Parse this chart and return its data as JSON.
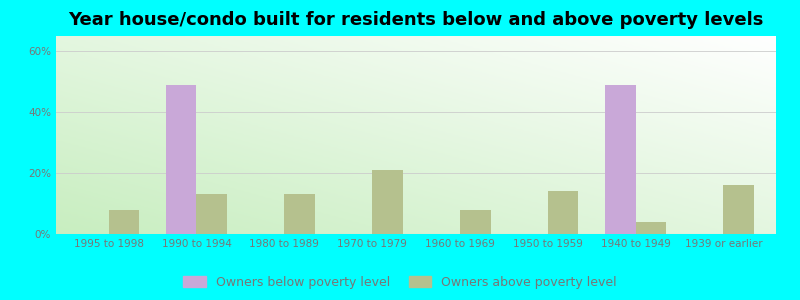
{
  "title": "Year house/condo built for residents below and above poverty levels",
  "categories": [
    "1995 to 1998",
    "1990 to 1994",
    "1980 to 1989",
    "1970 to 1979",
    "1960 to 1969",
    "1950 to 1959",
    "1940 to 1949",
    "1939 or earlier"
  ],
  "below_poverty": [
    0,
    49,
    0,
    0,
    0,
    0,
    49,
    0
  ],
  "above_poverty": [
    8,
    13,
    13,
    21,
    8,
    14,
    4,
    16
  ],
  "below_color": "#C9A8D8",
  "above_color": "#B5C18E",
  "background_grad_left": "#C8EEC0",
  "background_grad_right": "#EAFAEA",
  "outer_background": "#00FFFF",
  "ylim": [
    0,
    65
  ],
  "yticks": [
    0,
    20,
    40,
    60
  ],
  "ytick_labels": [
    "0%",
    "20%",
    "40%",
    "60%"
  ],
  "bar_width": 0.35,
  "legend_below_label": "Owners below poverty level",
  "legend_above_label": "Owners above poverty level",
  "title_fontsize": 13,
  "tick_fontsize": 7.5,
  "legend_fontsize": 9,
  "tick_color": "#777777",
  "grid_color": "#CCCCCC"
}
